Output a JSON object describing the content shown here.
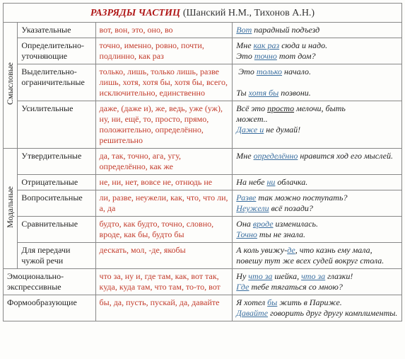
{
  "title": {
    "main": "РАЗРЯДЫ ЧАСТИЦ",
    "sub": "(Шанский Н.М., Тихонов А.Н.)"
  },
  "groups": [
    {
      "label": "Смысловые"
    },
    {
      "label": "Модальные"
    }
  ],
  "rows": [
    {
      "cat": "Указательные",
      "particles": "вот, вон, это, оно, во",
      "example": "<span class='kw'>Вот</span> парадный подъезд"
    },
    {
      "cat": "Определительно-уточняющие",
      "particles": "точно, именно, ровно, почти, подлинно, как раз",
      "example": "Мне <span class='kw'>как раз</span> сюда и надо.<br>Это <span class='kw'>точно</span> тот дом?"
    },
    {
      "cat": "Выделительно-ограничительные",
      "particles": "только, лишь, только лишь, разве лишь, хотя, хотя бы, хотя бы, всего, исключительно, единственно",
      "example": "&nbsp;Это <span class='kw'>только</span> начало.<br><br>Ты <span class='kw'>хотя бы</span> позвони."
    },
    {
      "cat": "Усилительные",
      "particles": "даже, (даже и), же, ведь, уже (уж), ну, ни, ещё, то, просто, прямо, положительно, определённо, решительно",
      "example": "Всё это <span class='under'>просто</span> мелочи, быть<br>может..<br><span class='kw'>Даже и</span> не думай!"
    },
    {
      "cat": "Утвердительные",
      "particles": "да, так, точно, ага, угу, определённо, как же",
      "example": "Мне <span class='kw'>определённо</span> нравится ход его мыслей."
    },
    {
      "cat": "Отрицательные",
      "particles": "не, ни, нет, вовсе не, отнюдь не",
      "example": "На небе <span class='kw'>ни</span> облачка."
    },
    {
      "cat": "Вопросительные",
      "particles": "ли, разве, неужели, как, что, что ли, а, да",
      "example": "<span class='kw'>Разве</span> так можно поступать?<br><span class='kw'>Неужели</span> всё позади?"
    },
    {
      "cat": "Сравнительные",
      "particles": "будто, как будто, точно, словно, вроде, как бы, будто бы",
      "example": "Она <span class='kw'>вроде</span> изменилась.<br><span class='kw'>Точно</span> ты не знала."
    },
    {
      "cat": "Для передачи чужой речи",
      "particles": "дескать, мол, -де, якобы",
      "example": "А коль увижу-<span class='kw'>де</span>, что казнь ему мала, повешу тут же всех судей вокруг стола."
    },
    {
      "cat": "Эмоционально-экспрессивные",
      "particles": "что за, ну и, где там, как, вот так, куда, куда там, что там, то-то, вот",
      "example": "Ну <span class='kw'>что за</span> шейка, <span class='kw'>что за</span> глазки!<br><span class='kw'>Где</span> тебе тягаться со мною?"
    },
    {
      "cat": "Формообразующие",
      "particles": "бы, да, пусть, пускай, да, давайте",
      "example": "Я хотел <span class='kw'>бы</span> жить в Париже.<br><span class='kw'>Давайте</span> говорить друг другу комплименты."
    }
  ],
  "colors": {
    "title": "#b01818",
    "particles": "#c23a2a",
    "keyword": "#3b6fa0",
    "border": "#888888",
    "bg": "#fdfdfb"
  },
  "fontsize": {
    "title": 14,
    "cell": 12
  }
}
